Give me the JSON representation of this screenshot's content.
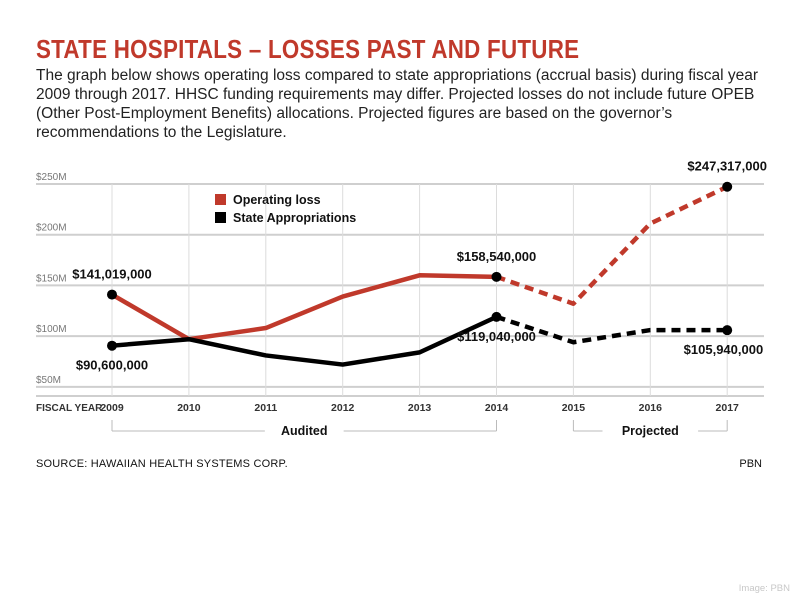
{
  "header": {
    "title": "STATE HOSPITALS – LOSSES PAST AND FUTURE",
    "subtitle": "The graph below shows operating loss compared to state appropriations (accrual basis) during fiscal year 2009 through 2017. HHSC funding requirements may differ. Projected losses do not include future OPEB (Other Post-Employment Benefits) allocations. Projected figures are based on the governor’s recommendations to the Legislature."
  },
  "footer": {
    "source": "SOURCE: HAWAIIAN HEALTH SYSTEMS CORP.",
    "logo": "PBN",
    "credit": "Image: PBN"
  },
  "chart_data": {
    "type": "line",
    "x_axis_title": "FISCAL YEAR",
    "categories": [
      "2009",
      "2010",
      "2011",
      "2012",
      "2013",
      "2014",
      "2015",
      "2016",
      "2017"
    ],
    "y_ticks": [
      {
        "value": 250,
        "label": "$250M"
      },
      {
        "value": 200,
        "label": "$200M"
      },
      {
        "value": 150,
        "label": "$150M"
      },
      {
        "value": 100,
        "label": "$100M"
      },
      {
        "value": 50,
        "label": "$50M"
      }
    ],
    "ylim": [
      41,
      250
    ],
    "grid": true,
    "legend_position": "top-left",
    "series": [
      {
        "name": "Operating loss",
        "color": "#c0392b",
        "values": [
          141.0,
          97,
          108,
          139,
          160,
          158.5,
          132,
          211,
          247.3
        ],
        "dashed_from_index": 5
      },
      {
        "name": "State Appropriations",
        "color": "#000000",
        "values": [
          90.6,
          97,
          81,
          72,
          84,
          119.0,
          94,
          106,
          105.9
        ],
        "dashed_from_index": 5
      }
    ],
    "data_labels": [
      {
        "series": 0,
        "index": 0,
        "text": "$141,019,000",
        "place": "above"
      },
      {
        "series": 0,
        "index": 5,
        "text": "$158,540,000",
        "place": "above"
      },
      {
        "series": 0,
        "index": 8,
        "text": "$247,317,000",
        "place": "above"
      },
      {
        "series": 1,
        "index": 0,
        "text": "$90,600,000",
        "place": "below"
      },
      {
        "series": 1,
        "index": 5,
        "text": "$119,040,000",
        "place": "below"
      },
      {
        "series": 1,
        "index": 8,
        "text": "$105,940,000",
        "place": "below"
      }
    ],
    "markers": [
      {
        "series": 0,
        "index": 0
      },
      {
        "series": 0,
        "index": 5
      },
      {
        "series": 0,
        "index": 8
      },
      {
        "series": 1,
        "index": 0
      },
      {
        "series": 1,
        "index": 5
      },
      {
        "series": 1,
        "index": 8
      }
    ],
    "periods": [
      {
        "label": "Audited",
        "from": 0,
        "to": 5
      },
      {
        "label": "Projected",
        "from": 6,
        "to": 8
      }
    ]
  }
}
